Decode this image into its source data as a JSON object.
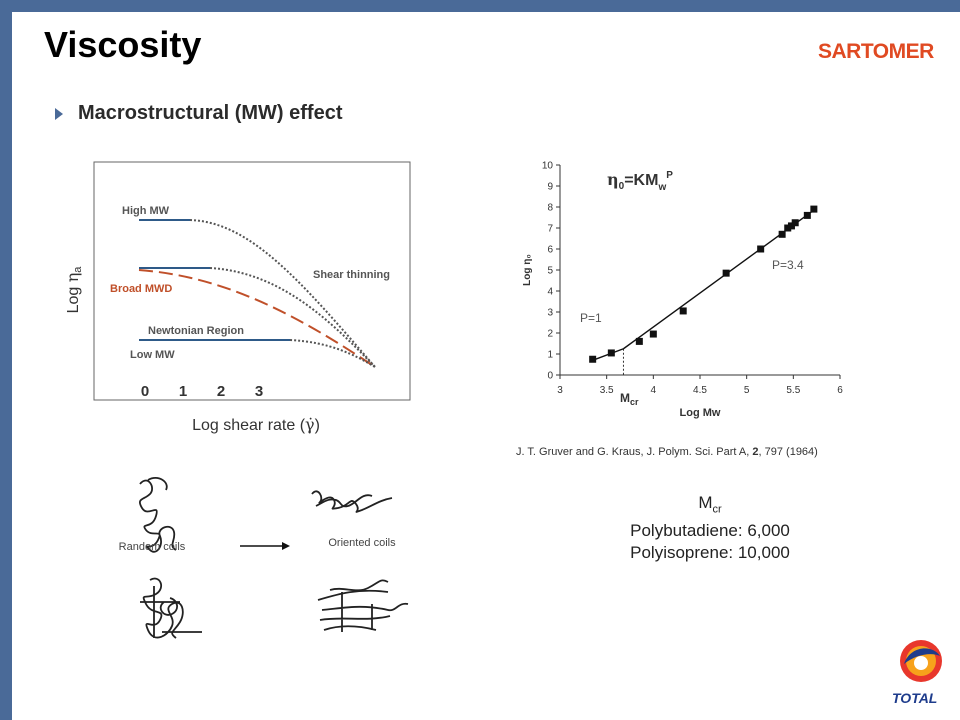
{
  "slide": {
    "title": "Viscosity",
    "brand": "SARTOMER",
    "bullet": "Macrostructural (MW) effect",
    "total_logo_text": "TOTAL",
    "colors": {
      "frame": "#4a6a98",
      "brand": "#e04a22",
      "broad_mwd": "#c0502a",
      "newtonian_line": "#2e5a88"
    }
  },
  "schematic": {
    "y_label_prefix": "Log ",
    "y_label_symbol": "η",
    "y_label_sub": "a",
    "x_label": "Log shear rate (",
    "x_label_symbol": "γ̇",
    "x_label_end": ")",
    "x_ticks": [
      "0",
      "1",
      "2",
      "3"
    ],
    "labels": {
      "high_mw": "High MW",
      "broad_mwd": "Broad MWD",
      "newtonian_region": "Newtonian Region",
      "low_mw": "Low MW",
      "shear_thinning": "Shear thinning"
    }
  },
  "coils": {
    "random": "Random coils",
    "oriented": "Oriented coils"
  },
  "chart_data": {
    "type": "scatter",
    "xlabel": "Log Mw",
    "ylabel": "Log η₀",
    "xlim": [
      3,
      6
    ],
    "ylim": [
      0,
      10
    ],
    "x_ticks": [
      "3",
      "3.5",
      "4",
      "4.5",
      "5",
      "5.5",
      "6"
    ],
    "y_ticks": [
      "0",
      "1",
      "2",
      "3",
      "4",
      "5",
      "6",
      "7",
      "8",
      "9",
      "10"
    ],
    "series": [
      {
        "values": [
          {
            "x": 3.35,
            "y": 0.75
          },
          {
            "x": 3.55,
            "y": 1.05
          },
          {
            "x": 3.85,
            "y": 1.6
          },
          {
            "x": 4.0,
            "y": 1.95
          },
          {
            "x": 4.32,
            "y": 3.05
          },
          {
            "x": 4.78,
            "y": 4.85
          },
          {
            "x": 5.15,
            "y": 6.0
          },
          {
            "x": 5.38,
            "y": 6.7
          },
          {
            "x": 5.44,
            "y": 7.0
          },
          {
            "x": 5.48,
            "y": 7.1
          },
          {
            "x": 5.52,
            "y": 7.25
          },
          {
            "x": 5.65,
            "y": 7.6
          },
          {
            "x": 5.72,
            "y": 7.9
          }
        ]
      }
    ],
    "fit_lines": [
      {
        "label": "P=1",
        "from": [
          3.35,
          0.7
        ],
        "to": [
          3.68,
          1.25
        ]
      },
      {
        "label": "P=3.4",
        "from": [
          3.68,
          1.25
        ],
        "to": [
          5.75,
          7.95
        ]
      }
    ],
    "mcr_x": 3.68,
    "equation": {
      "eta": "η",
      "sub0": "0",
      "main": "=KM",
      "subw": "w",
      "supP": "P"
    },
    "annotations": {
      "p1": "P=1",
      "p34": "P=3.4",
      "mcr_main": "M",
      "mcr_sub": "cr"
    }
  },
  "citation": {
    "pre": "J. T. Gruver and G. Kraus, J. Polym. Sci. Part A, ",
    "bold": "2",
    "post": ", 797 (1964)"
  },
  "mcr_values": {
    "main": "M",
    "sub": "cr",
    "line1": "Polybutadiene: 6,000",
    "line2": "Polyisoprene: 10,000"
  }
}
